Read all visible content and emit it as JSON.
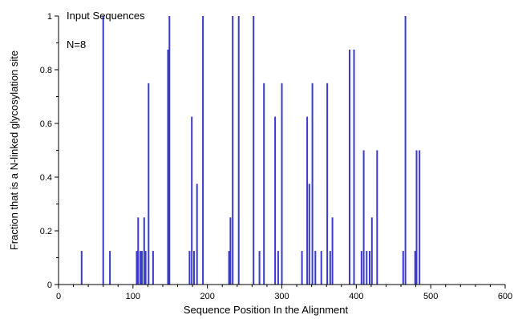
{
  "chart_data": {
    "type": "bar",
    "xlabel": "Sequence Position In the Alignment",
    "ylabel": "Fraction that is a N-linked glycosylation site",
    "annotations": [
      "Input Sequences",
      "N=8"
    ],
    "xlim": [
      0,
      600
    ],
    "ylim": [
      0,
      1
    ],
    "xticks": [
      "0",
      "100",
      "200",
      "300",
      "400",
      "500",
      "600"
    ],
    "yticks": [
      "0",
      "0.2",
      "0.4",
      "0.6",
      "0.8",
      "1"
    ],
    "grid": false,
    "color": "#3a3acc",
    "series": [
      {
        "x": [
          31,
          60,
          69,
          105,
          107,
          110,
          112,
          115,
          117,
          121,
          127,
          147,
          149,
          176,
          179,
          182,
          186,
          194,
          229,
          231,
          234,
          242,
          262,
          270,
          276,
          291,
          295,
          300,
          327,
          334,
          337,
          341,
          345,
          353,
          361,
          365,
          368,
          391,
          397,
          407,
          410,
          414,
          418,
          421,
          428,
          463,
          466,
          479,
          481,
          485
        ],
        "values": [
          0.125,
          1.0,
          0.125,
          0.125,
          0.25,
          0.125,
          0.125,
          0.25,
          0.125,
          0.75,
          0.125,
          0.875,
          1.0,
          0.125,
          0.625,
          0.125,
          0.375,
          1.0,
          0.125,
          0.25,
          1.0,
          1.0,
          1.0,
          0.125,
          0.75,
          0.625,
          0.125,
          0.75,
          0.125,
          0.625,
          0.375,
          0.75,
          0.125,
          0.125,
          0.75,
          0.125,
          0.25,
          0.875,
          0.875,
          0.125,
          0.5,
          0.125,
          0.125,
          0.25,
          0.5,
          0.125,
          1.0,
          0.125,
          0.5,
          0.5
        ]
      }
    ]
  }
}
